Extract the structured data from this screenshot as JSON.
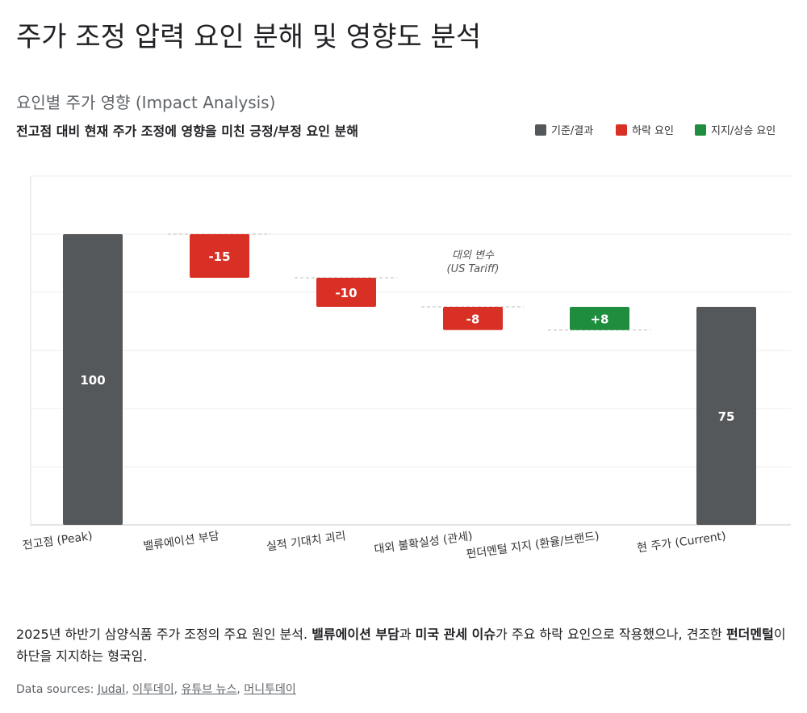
{
  "page": {
    "title": "주가 조정 압력 요인 분해 및 영향도 분석",
    "section_title": "요인별 주가 영향 (Impact Analysis)",
    "summary": [
      {
        "text": "2025년 하반기 삼양식품 주가 조정의 주요 원인 분석. ",
        "bold": false
      },
      {
        "text": "밸류에이션 부담",
        "bold": true
      },
      {
        "text": "과 ",
        "bold": false
      },
      {
        "text": "미국 관세 이슈",
        "bold": true
      },
      {
        "text": "가 주요 하락 요인으로 작용했으나, 견조한 ",
        "bold": false
      },
      {
        "text": "펀더멘털",
        "bold": true
      },
      {
        "text": "이 하단을 지지하는 형국임.",
        "bold": false
      }
    ],
    "sources_label": "Data sources:",
    "sources": [
      "Judal",
      "이투데이",
      "유튜브 뉴스",
      "머니투데이"
    ],
    "source_separator": ", "
  },
  "chart_data": {
    "type": "waterfall",
    "subtitle": "전고점 대비 현재 주가 조정에 영향을 미친 긍정/부정 요인 분해",
    "categories": [
      "전고점 (Peak)",
      "밸류에이션 부담",
      "실적 기대치 괴리",
      "대외 불확실성 (관세)",
      "펀더멘털 지지 (환율/브랜드)",
      "현 주가 (Current)"
    ],
    "values": [
      100,
      -15,
      -10,
      -8,
      8,
      75
    ],
    "value_labels": [
      "100",
      "-15",
      "-10",
      "-8",
      "+8",
      "75"
    ],
    "bar_kinds": [
      "total",
      "delta",
      "delta",
      "delta",
      "delta",
      "total"
    ],
    "legend": [
      {
        "name": "기준/결과",
        "color": "#55585b"
      },
      {
        "name": "하락 요인",
        "color": "#d93025"
      },
      {
        "name": "지지/상승 요인",
        "color": "#1e8e3e"
      }
    ],
    "annotation": [
      "대외 변수",
      "(US Tariff)"
    ],
    "ylim": [
      0,
      120
    ],
    "yticks": [
      0,
      20,
      40,
      60,
      80,
      100,
      120
    ],
    "show_ytick_labels": false,
    "grid": true
  }
}
